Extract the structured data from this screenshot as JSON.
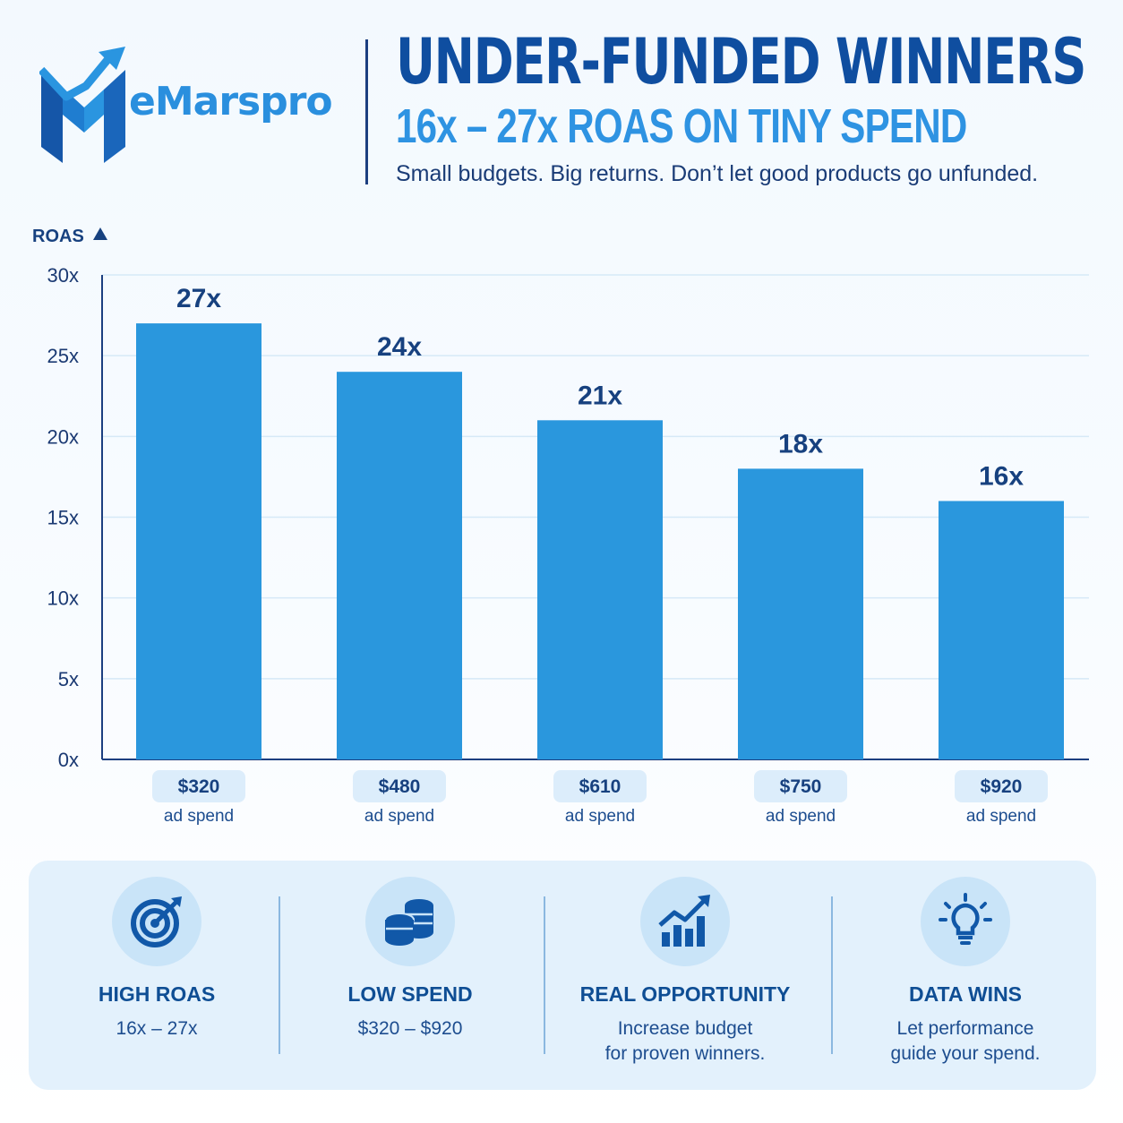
{
  "brand": {
    "name": "eMarspro"
  },
  "header": {
    "title": "UNDER-FUNDED WINNERS",
    "subtitle": "16x – 27x ROAS ON TINY SPEND",
    "tagline": "Small budgets. Big returns. Don’t let good products go unfunded."
  },
  "colors": {
    "bar": "#2a97dd",
    "navy": "#0f4ea0",
    "accent": "#2e93e2",
    "grid": "#d6e9f7"
  },
  "chart_data": {
    "type": "bar",
    "ylabel": "ROAS",
    "ylim": [
      0,
      30
    ],
    "yticks": [
      "0x",
      "5x",
      "10x",
      "15x",
      "20x",
      "25x",
      "30x"
    ],
    "categories": [
      "$320",
      "$480",
      "$610",
      "$750",
      "$920"
    ],
    "category_sublabel": "ad spend",
    "values": [
      27,
      24,
      21,
      18,
      16
    ],
    "data_labels": [
      "27x",
      "24x",
      "21x",
      "18x",
      "16x"
    ],
    "grid": true
  },
  "features": [
    {
      "icon": "target-icon",
      "title": "HIGH ROAS",
      "lines": [
        "16x – 27x"
      ]
    },
    {
      "icon": "coins-icon",
      "title": "LOW SPEND",
      "lines": [
        "$320 – $920"
      ]
    },
    {
      "icon": "growth-chart-icon",
      "title": "REAL OPPORTUNITY",
      "lines": [
        "Increase budget",
        "for proven winners."
      ]
    },
    {
      "icon": "lightbulb-icon",
      "title": "DATA WINS",
      "lines": [
        "Let performance",
        "guide your spend."
      ]
    }
  ]
}
